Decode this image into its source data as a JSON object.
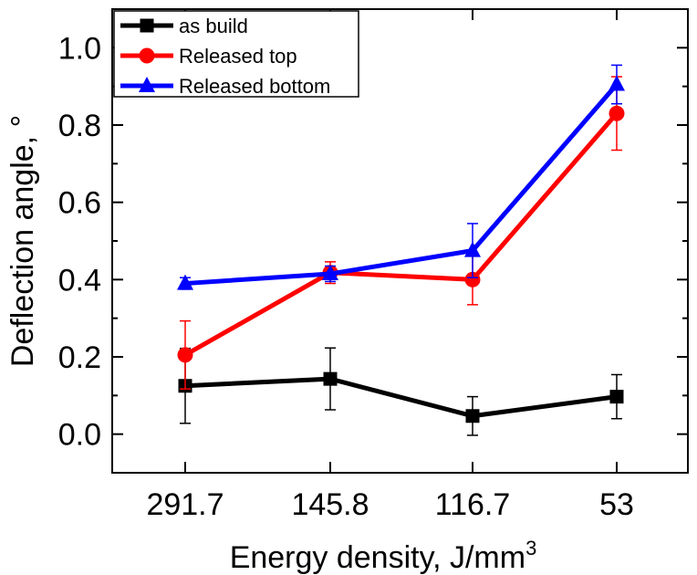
{
  "chart_data": {
    "type": "line",
    "categories": [
      "291.7",
      "145.8",
      "116.7",
      "53"
    ],
    "xlabel": "Energy density, J/mm",
    "xlabel_superscript": "3",
    "ylabel": "Deflection angle, °",
    "ylim": [
      -0.1,
      1.1
    ],
    "yticks": [
      0.0,
      0.2,
      0.4,
      0.6,
      0.8,
      1.0
    ],
    "ytick_labels": [
      "0.0",
      "0.2",
      "0.4",
      "0.6",
      "0.8",
      "1.0"
    ],
    "grid": false,
    "legend_position": "top-left",
    "series": [
      {
        "name": "as build",
        "color": "#000000",
        "marker": "square",
        "values": [
          0.125,
          0.143,
          0.047,
          0.097
        ],
        "error": [
          0.097,
          0.08,
          0.05,
          0.057
        ]
      },
      {
        "name": "Released top",
        "color": "#ff0000",
        "marker": "circle",
        "values": [
          0.205,
          0.418,
          0.4,
          0.83
        ],
        "error": [
          0.088,
          0.028,
          0.065,
          0.095
        ]
      },
      {
        "name": "Released bottom",
        "color": "#0000ff",
        "marker": "triangle",
        "values": [
          0.39,
          0.415,
          0.475,
          0.905
        ],
        "error": [
          0.015,
          0.02,
          0.07,
          0.05
        ]
      }
    ]
  }
}
